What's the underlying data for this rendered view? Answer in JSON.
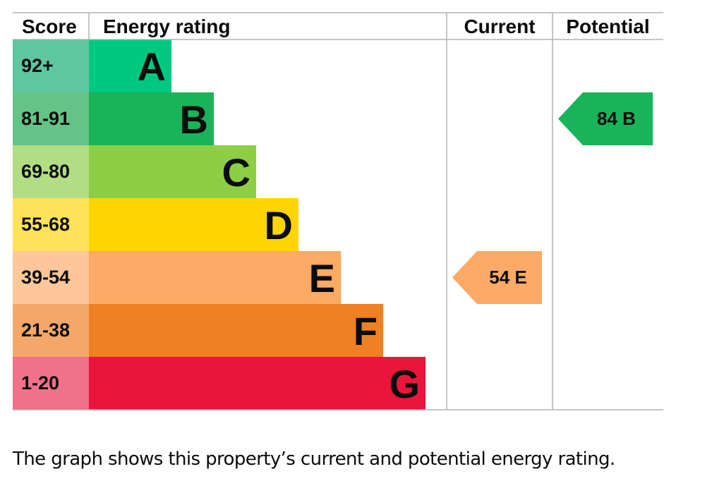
{
  "chart_data": {
    "type": "bar",
    "headers": {
      "score": "Score",
      "rating": "Energy rating",
      "current": "Current",
      "potential": "Potential"
    },
    "bands": [
      {
        "score": "92+",
        "letter": "A",
        "band_color": "#00c781",
        "score_color": "#5ec6a0"
      },
      {
        "score": "81-91",
        "letter": "B",
        "band_color": "#19b459",
        "score_color": "#66c387"
      },
      {
        "score": "69-80",
        "letter": "C",
        "band_color": "#8dce46",
        "score_color": "#b2dd84"
      },
      {
        "score": "55-68",
        "letter": "D",
        "band_color": "#ffd500",
        "score_color": "#ffe25c"
      },
      {
        "score": "39-54",
        "letter": "E",
        "band_color": "#fcaa65",
        "score_color": "#fdc79a"
      },
      {
        "score": "21-38",
        "letter": "F",
        "band_color": "#ef8023",
        "score_color": "#f3a86a"
      },
      {
        "score": "1-20",
        "letter": "G",
        "band_color": "#e9153b",
        "score_color": "#f0718a"
      }
    ],
    "current": {
      "value": 54,
      "letter": "E",
      "color": "#fcaa65"
    },
    "potential": {
      "value": 84,
      "letter": "B",
      "color": "#19b459"
    }
  },
  "caption": "The graph shows this property’s current and potential energy rating."
}
